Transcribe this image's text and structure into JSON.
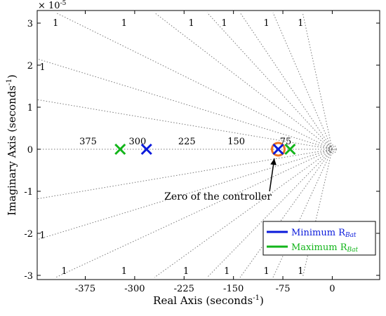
{
  "chart_data": {
    "type": "scatter",
    "title": "",
    "xlabel": "Real Axis (seconds",
    "xlabel_sup": "-1",
    "xlabel_close": ")",
    "ylabel": "Imaginary Axis (seconds",
    "ylabel_sup": "-1",
    "ylabel_close": ")",
    "exponent_label": "× 10",
    "exponent_sup": "-5",
    "xlim": [
      -448,
      72
    ],
    "ylim": [
      -3.1,
      3.3
    ],
    "xticks": [
      -375,
      -300,
      -225,
      -150,
      -75,
      0
    ],
    "xtick_labels": [
      "-375",
      "-300",
      "-225",
      "-150",
      "-75",
      "0"
    ],
    "yticks": [
      -3,
      -2,
      -1,
      0,
      1,
      2,
      3
    ],
    "ytick_labels": [
      "-3",
      "-2",
      "-1",
      "0",
      "1",
      "2",
      "3"
    ],
    "grid": "pole-zero (constant damping rays, constant natural frequency arcs)",
    "damping_rays": [
      {
        "value": 1,
        "top_point": [
          -420,
          3.25
        ],
        "bottom_point": [
          -420,
          -3.05
        ]
      },
      {
        "value": 1,
        "top_point": [
          -270,
          3.25
        ],
        "bottom_point": [
          -270,
          -3.05
        ]
      },
      {
        "value": 1,
        "top_point": [
          -190,
          3.25
        ],
        "bottom_point": [
          -190,
          -3.05
        ]
      },
      {
        "value": 1,
        "top_point": [
          -140,
          3.25
        ],
        "bottom_point": [
          -140,
          -3.05
        ]
      },
      {
        "value": 1,
        "top_point": [
          -90,
          3.25
        ],
        "bottom_point": [
          -90,
          -3.05
        ]
      },
      {
        "value": 1,
        "top_point": [
          -45,
          3.25
        ],
        "bottom_point": [
          -45,
          -3.05
        ]
      },
      {
        "value": 1,
        "top_point": [
          -448,
          2.15
        ],
        "bottom_point": [
          -448,
          -2.15
        ]
      },
      {
        "value": 1,
        "top_point": [
          -448,
          1.18
        ],
        "bottom_point": [
          -448,
          -1.18
        ]
      }
    ],
    "damping_labels": [
      {
        "text": "1",
        "x": -420,
        "y": 3.0
      },
      {
        "text": "1",
        "x": -316,
        "y": 3.0
      },
      {
        "text": "1",
        "x": -214,
        "y": 3.0
      },
      {
        "text": "1",
        "x": -164,
        "y": 3.0
      },
      {
        "text": "1",
        "x": -100,
        "y": 3.0
      },
      {
        "text": "1",
        "x": -48,
        "y": 3.0
      },
      {
        "text": "1",
        "x": -440,
        "y": 1.95
      },
      {
        "text": "1",
        "x": -440,
        "y": -2.05
      },
      {
        "text": "1",
        "x": -407,
        "y": -2.9
      },
      {
        "text": "1",
        "x": -316,
        "y": -2.9
      },
      {
        "text": "1",
        "x": -222,
        "y": -2.9
      },
      {
        "text": "1",
        "x": -160,
        "y": -2.9
      },
      {
        "text": "1",
        "x": -100,
        "y": -2.9
      },
      {
        "text": "1",
        "x": -48,
        "y": -2.9
      }
    ],
    "wn_labels": [
      {
        "text": "375",
        "x": -375
      },
      {
        "text": "300",
        "x": -300
      },
      {
        "text": "225",
        "x": -225
      },
      {
        "text": "150",
        "x": -150
      },
      {
        "text": "75",
        "x": -75
      }
    ],
    "series": [
      {
        "name": "Minimum R",
        "subscript": "Bat",
        "color": "#0a1adb",
        "marker": "x",
        "points": [
          [
            -282,
            0
          ],
          [
            -82,
            0
          ]
        ]
      },
      {
        "name": "Maximum  R",
        "subscript": "Bat",
        "color": "#12b51a",
        "marker": "x",
        "points": [
          [
            -322,
            0
          ],
          [
            -64,
            0
          ]
        ]
      }
    ],
    "zero": {
      "x": -82,
      "y": 0,
      "color": "#ee7422",
      "marker": "o"
    },
    "annotation": {
      "text": "Zero of the controller",
      "text_x": -255,
      "text_y": -1.2,
      "arrow_to": [
        -88,
        -0.22
      ]
    },
    "legend": {
      "placement": "bottom-right"
    }
  }
}
